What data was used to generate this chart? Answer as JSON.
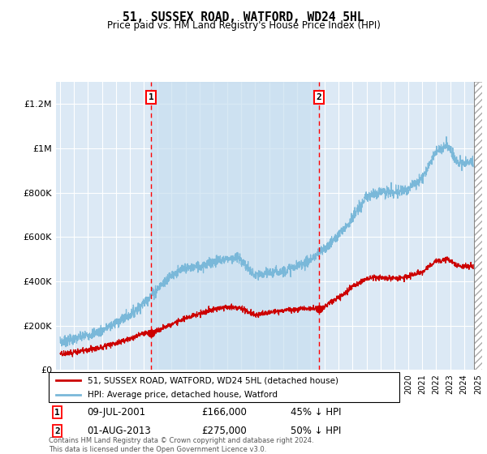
{
  "title": "51, SUSSEX ROAD, WATFORD, WD24 5HL",
  "subtitle": "Price paid vs. HM Land Registry's House Price Index (HPI)",
  "ylim": [
    0,
    1300000
  ],
  "yticks": [
    0,
    200000,
    400000,
    600000,
    800000,
    1000000,
    1200000
  ],
  "ytick_labels": [
    "£0",
    "£200K",
    "£400K",
    "£600K",
    "£800K",
    "£1M",
    "£1.2M"
  ],
  "background_color": "#dce9f5",
  "grid_color": "#ffffff",
  "red_line_color": "#cc0000",
  "blue_line_color": "#7ab8d9",
  "marker1_x": 2001.53,
  "marker2_x": 2013.58,
  "marker1_y": 166000,
  "marker2_y": 275000,
  "marker1_date": "09-JUL-2001",
  "marker1_price": "£166,000",
  "marker1_hpi": "45% ↓ HPI",
  "marker2_date": "01-AUG-2013",
  "marker2_price": "£275,000",
  "marker2_hpi": "50% ↓ HPI",
  "legend_line1": "51, SUSSEX ROAD, WATFORD, WD24 5HL (detached house)",
  "legend_line2": "HPI: Average price, detached house, Watford",
  "footnote": "Contains HM Land Registry data © Crown copyright and database right 2024.\nThis data is licensed under the Open Government Licence v3.0.",
  "xmin": 1994.7,
  "xmax": 2025.3
}
